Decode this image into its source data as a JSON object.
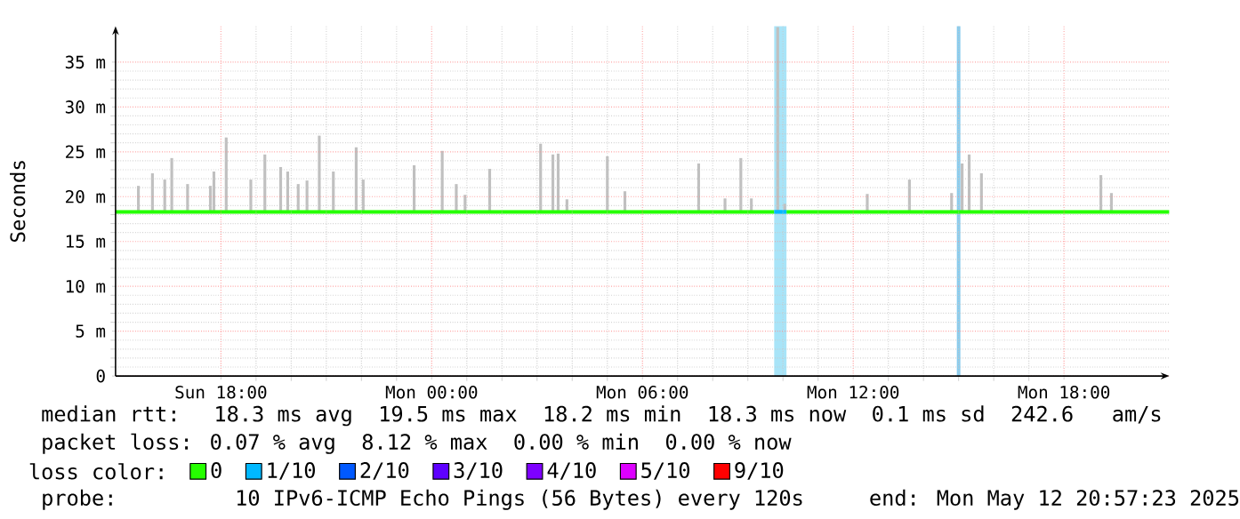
{
  "chart_data": {
    "type": "line",
    "ylabel": "Seconds",
    "xlim": [
      "2025-05-11T15:00",
      "2025-05-12T21:00"
    ],
    "xticks": [
      {
        "value": "2025-05-11T18:00",
        "label": "Sun 18:00"
      },
      {
        "value": "2025-05-12T00:00",
        "label": "Mon 00:00"
      },
      {
        "value": "2025-05-12T06:00",
        "label": "Mon 06:00"
      },
      {
        "value": "2025-05-12T12:00",
        "label": "Mon 12:00"
      },
      {
        "value": "2025-05-12T18:00",
        "label": "Mon 18:00"
      }
    ],
    "ylim": [
      0,
      39
    ],
    "yticks": [
      0,
      {
        "value": 5,
        "label": "5 m"
      },
      {
        "value": 10,
        "label": "10 m"
      },
      {
        "value": 15,
        "label": "15 m"
      },
      {
        "value": 20,
        "label": "20 m"
      },
      {
        "value": 25,
        "label": "25 m"
      },
      {
        "value": 30,
        "label": "30 m"
      },
      {
        "value": 35,
        "label": "35 m"
      }
    ],
    "grid": true,
    "legend": "bottom",
    "legend_title": "loss color:",
    "bands": [
      {
        "axis": "x",
        "from": "2025-05-12T09:45",
        "to": "2025-05-12T10:06",
        "color": "#a8e4f8"
      },
      {
        "axis": "x",
        "from": "2025-05-12T14:57",
        "to": "2025-05-12T15:03",
        "color": "#88ccee"
      }
    ],
    "series": [
      {
        "type": "bar",
        "color": "#c0c0c0",
        "x": [
          "2025-05-11T15:39",
          "2025-05-11T16:03",
          "2025-05-11T16:24",
          "2025-05-11T16:36",
          "2025-05-11T17:03",
          "2025-05-11T17:42",
          "2025-05-11T17:48",
          "2025-05-11T18:09",
          "2025-05-11T18:51",
          "2025-05-11T19:15",
          "2025-05-11T19:42",
          "2025-05-11T19:54",
          "2025-05-11T20:12",
          "2025-05-11T20:27",
          "2025-05-11T20:48",
          "2025-05-11T21:12",
          "2025-05-11T21:51",
          "2025-05-11T22:03",
          "2025-05-11T23:30",
          "2025-05-12T00:18",
          "2025-05-12T00:42",
          "2025-05-12T00:57",
          "2025-05-12T01:39",
          "2025-05-12T03:06",
          "2025-05-12T03:27",
          "2025-05-12T03:36",
          "2025-05-12T03:51",
          "2025-05-12T05:00",
          "2025-05-12T05:30",
          "2025-05-12T07:36",
          "2025-05-12T08:21",
          "2025-05-12T08:48",
          "2025-05-12T09:06",
          "2025-05-12T09:51",
          "2025-05-12T10:03",
          "2025-05-12T12:24",
          "2025-05-12T13:36",
          "2025-05-12T14:48",
          "2025-05-12T15:06",
          "2025-05-12T15:18",
          "2025-05-12T15:39",
          "2025-05-12T19:03",
          "2025-05-12T19:21"
        ],
        "base": [
          18.3,
          18.3,
          18.3,
          18.3,
          18.3,
          18.3,
          18.3,
          18.3,
          18.3,
          18.3,
          18.3,
          18.3,
          18.3,
          18.3,
          18.3,
          18.3,
          18.3,
          18.3,
          18.3,
          18.3,
          18.3,
          18.3,
          18.3,
          18.3,
          18.3,
          18.3,
          18.3,
          18.3,
          18.3,
          18.3,
          18.3,
          18.3,
          18.3,
          18.3,
          18.3,
          18.3,
          18.3,
          18.3,
          18.3,
          18.3,
          18.3,
          18.3,
          18.3
        ],
        "values": [
          2.9,
          4.3,
          3.6,
          6.0,
          3.1,
          2.9,
          4.5,
          8.3,
          3.6,
          6.4,
          5.0,
          4.5,
          3.1,
          3.5,
          8.5,
          4.5,
          7.2,
          3.6,
          5.2,
          6.8,
          3.1,
          1.9,
          4.8,
          7.6,
          6.4,
          6.5,
          1.4,
          6.2,
          2.3,
          5.4,
          1.5,
          6.0,
          1.5,
          20.6,
          0.9,
          2.0,
          3.6,
          2.1,
          5.4,
          6.4,
          4.3,
          4.1,
          2.1
        ]
      },
      {
        "name": "0",
        "color": "#26ff00",
        "x": [
          "2025-05-11T15:00",
          "2025-05-12T09:45",
          "2025-05-12T09:50",
          "2025-05-12T10:06",
          "2025-05-12T21:00"
        ],
        "values": [
          18.3,
          18.3,
          null,
          18.3,
          18.3
        ]
      },
      {
        "name": "1/10",
        "color": "#00b8ff",
        "x": [
          "2025-05-12T09:45",
          "2025-05-12T10:06"
        ],
        "values": [
          18.3,
          18.3
        ]
      },
      {
        "name": "2/10",
        "color": "#0059ff"
      },
      {
        "name": "3/10",
        "color": "#5e00ff"
      },
      {
        "name": "4/10",
        "color": "#7e00ff"
      },
      {
        "name": "5/10",
        "color": "#dd00ff"
      },
      {
        "name": "9/10",
        "color": "#ff0000"
      }
    ],
    "annotations": [
      "median rtt:  18.3 ms avg  19.5 ms max  18.2 ms min  18.3 ms now  0.1 ms sd  242.6   am/s",
      "packet loss: 0.07 % avg  8.12 % max  0.00 % min  0.00 % now",
      "probe:       10 IPv6-ICMP Echo Pings (56 Bytes) every 120s",
      "end: Mon May 12 20:57:23 2025"
    ]
  }
}
